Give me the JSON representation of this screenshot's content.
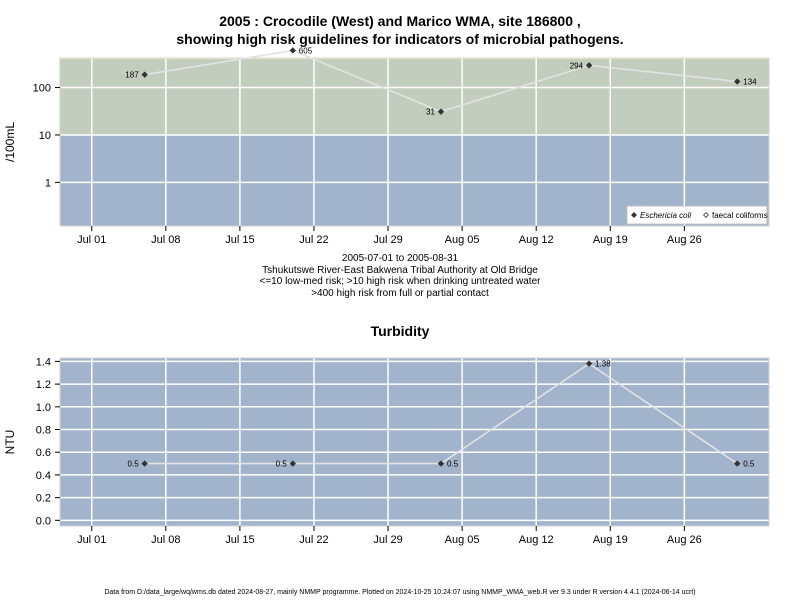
{
  "page": {
    "title_line1": "2005 : Crocodile (West) and Marico WMA, site 186800 ,",
    "title_line2": "showing high risk guidelines for indicators of microbial pathogens.",
    "caption_lines": [
      "2005-07-01 to 2005-08-31",
      "Tshukutswe River-East Bakwena Tribal Authority at Old Bridge",
      "<=10 low-med risk; >10 high risk when drinking untreated water",
      ">400 high risk from full or partial contact"
    ],
    "footer": "Data from D:/data_large/wq/wms.db dated 2024-08-27, mainly NMMP programme. Plotted on 2024-10-25 10:24:07 using NMMP_WMA_web.R ver 9.3 under R version 4.4.1 (2024-06-14 ucrt)"
  },
  "colors": {
    "panel_bg": "#a2b3cc",
    "zone_low": "#a2b3cc",
    "zone_mid": "#c3cdbd",
    "zone_high": "#fef8c0",
    "grid": "#ffffff",
    "line": "#e2e2e2",
    "marker": "#333333"
  },
  "chart_data": [
    {
      "type": "line",
      "title": "",
      "ylabel": "/100mL",
      "yscale": "log",
      "x_ticks": [
        "Jul 01",
        "Jul 08",
        "Jul 15",
        "Jul 22",
        "Jul 29",
        "Aug 05",
        "Aug 12",
        "Aug 19",
        "Aug 26"
      ],
      "x_tick_dates": [
        "2005-07-01",
        "2005-07-08",
        "2005-07-15",
        "2005-07-22",
        "2005-07-29",
        "2005-08-05",
        "2005-08-12",
        "2005-08-19",
        "2005-08-26"
      ],
      "xlim": [
        "2005-06-28",
        "2005-09-03"
      ],
      "y_ticks": [
        1,
        10,
        100
      ],
      "y_tick_labels": [
        "1",
        "10",
        "100"
      ],
      "ylim": [
        0.12,
        420
      ],
      "risk_zones": [
        {
          "from": 0.12,
          "to": 10,
          "color": "#a2b3cc"
        },
        {
          "from": 10,
          "to": 400,
          "color": "#c3cdbd"
        },
        {
          "from": 400,
          "to": 420,
          "color": "#fef8c0"
        }
      ],
      "grid": true,
      "legend": {
        "placement": "bottom-right",
        "entries": [
          {
            "name": "Eschericia coli",
            "marker": "filled-diamond",
            "italic": true
          },
          {
            "name": "faecal coliforms",
            "marker": "open-diamond",
            "italic": false
          }
        ]
      },
      "series": [
        {
          "x": [
            "2005-07-06",
            "2005-07-20",
            "2005-08-03",
            "2005-08-17",
            "2005-08-31"
          ],
          "y": [
            187,
            605,
            31,
            294,
            134
          ],
          "labels": [
            "187",
            "605",
            "31",
            "294",
            "134"
          ],
          "label_side": [
            "left",
            "right",
            "left",
            "left",
            "right"
          ]
        }
      ]
    },
    {
      "type": "line",
      "title": "Turbidity",
      "ylabel": "NTU",
      "yscale": "linear",
      "x_ticks": [
        "Jul 01",
        "Jul 08",
        "Jul 15",
        "Jul 22",
        "Jul 29",
        "Aug 05",
        "Aug 12",
        "Aug 19",
        "Aug 26"
      ],
      "x_tick_dates": [
        "2005-07-01",
        "2005-07-08",
        "2005-07-15",
        "2005-07-22",
        "2005-07-29",
        "2005-08-05",
        "2005-08-12",
        "2005-08-19",
        "2005-08-26"
      ],
      "xlim": [
        "2005-06-28",
        "2005-09-03"
      ],
      "y_ticks": [
        0.0,
        0.2,
        0.4,
        0.6,
        0.8,
        1.0,
        1.2,
        1.4
      ],
      "y_tick_labels": [
        "0.0",
        "0.2",
        "0.4",
        "0.6",
        "0.8",
        "1.0",
        "1.2",
        "1.4"
      ],
      "ylim": [
        -0.05,
        1.43
      ],
      "grid": true,
      "series": [
        {
          "x": [
            "2005-07-06",
            "2005-07-20",
            "2005-08-03",
            "2005-08-17",
            "2005-08-31"
          ],
          "y": [
            0.5,
            0.5,
            0.5,
            1.38,
            0.5
          ],
          "labels": [
            "0.5",
            "0.5",
            "0.5",
            "1.38",
            "0.5"
          ],
          "label_side": [
            "left",
            "left",
            "right",
            "right",
            "right"
          ]
        }
      ]
    }
  ]
}
